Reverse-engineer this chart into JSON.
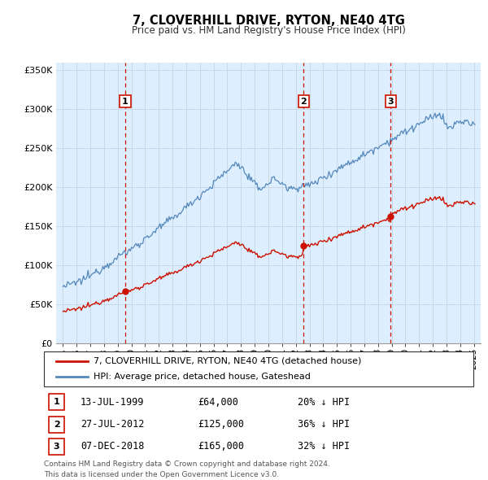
{
  "title": "7, CLOVERHILL DRIVE, RYTON, NE40 4TG",
  "subtitle": "Price paid vs. HM Land Registry's House Price Index (HPI)",
  "legend_line1": "7, CLOVERHILL DRIVE, RYTON, NE40 4TG (detached house)",
  "legend_line2": "HPI: Average price, detached house, Gateshead",
  "footer1": "Contains HM Land Registry data © Crown copyright and database right 2024.",
  "footer2": "This data is licensed under the Open Government Licence v3.0.",
  "sale_markers": [
    {
      "num": 1,
      "date": "13-JUL-1999",
      "price": 64000,
      "pct": "20%",
      "x_year": 1999.54
    },
    {
      "num": 2,
      "date": "27-JUL-2012",
      "price": 125000,
      "pct": "36%",
      "x_year": 2012.57
    },
    {
      "num": 3,
      "date": "07-DEC-2018",
      "price": 165000,
      "pct": "32%",
      "x_year": 2018.92
    }
  ],
  "ylim": [
    0,
    360000
  ],
  "yticks": [
    0,
    50000,
    100000,
    150000,
    200000,
    250000,
    300000,
    350000
  ],
  "ytick_labels": [
    "£0",
    "£50K",
    "£100K",
    "£150K",
    "£200K",
    "£250K",
    "£300K",
    "£350K"
  ],
  "xlim_start": 1994.5,
  "xlim_end": 2025.5,
  "hpi_color": "#5588bb",
  "sale_color": "#cc1100",
  "bg_color": "#ddeeff",
  "marker_box_color": "#cc1100",
  "vline_color": "#cc1100",
  "grid_color": "#c8d8e8"
}
